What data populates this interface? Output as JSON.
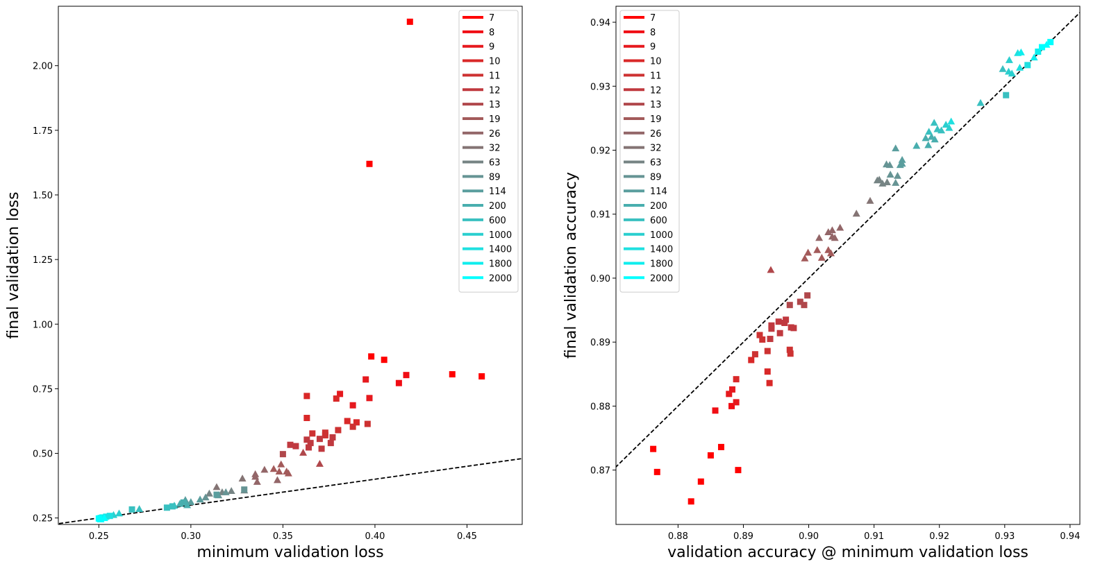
{
  "legend": {
    "labels": [
      "7",
      "8",
      "9",
      "10",
      "11",
      "12",
      "13",
      "19",
      "26",
      "32",
      "63",
      "89",
      "114",
      "200",
      "600",
      "1000",
      "1400",
      "1800",
      "2000"
    ],
    "colors": [
      "#ff0000",
      "#f00d14",
      "#e6191e",
      "#d92828",
      "#cd3232",
      "#c0393f",
      "#b0474b",
      "#a35a5a",
      "#936668",
      "#847474",
      "#768484",
      "#669494",
      "#5a9e9e",
      "#48aeae",
      "#39c0c0",
      "#2acfcf",
      "#1fe0e0",
      "#0eeeee",
      "#00ffff"
    ]
  },
  "chart_data": [
    {
      "type": "scatter",
      "title": "",
      "xlabel": "minimum validation loss",
      "ylabel": "final validation loss",
      "xlim": [
        0.228,
        0.48
      ],
      "ylim": [
        0.225,
        2.23
      ],
      "xticks": [
        "0.25",
        "0.30",
        "0.35",
        "0.40",
        "0.45"
      ],
      "yticks": [
        "0.25",
        "0.50",
        "0.75",
        "1.00",
        "1.25",
        "1.50",
        "1.75",
        "2.00"
      ],
      "reference_line": "y = x",
      "legend_position": "top-right",
      "points": [
        {
          "x": 0.419,
          "y": 2.17,
          "m": "s",
          "g": 0
        },
        {
          "x": 0.397,
          "y": 1.62,
          "m": "s",
          "g": 0
        },
        {
          "x": 0.398,
          "y": 0.875,
          "m": "s",
          "g": 0
        },
        {
          "x": 0.405,
          "y": 0.862,
          "m": "s",
          "g": 0
        },
        {
          "x": 0.442,
          "y": 0.806,
          "m": "s",
          "g": 0
        },
        {
          "x": 0.458,
          "y": 0.798,
          "m": "s",
          "g": 0
        },
        {
          "x": 0.417,
          "y": 0.803,
          "m": "s",
          "g": 1
        },
        {
          "x": 0.413,
          "y": 0.772,
          "m": "s",
          "g": 1
        },
        {
          "x": 0.395,
          "y": 0.786,
          "m": "s",
          "g": 2
        },
        {
          "x": 0.397,
          "y": 0.714,
          "m": "s",
          "g": 2
        },
        {
          "x": 0.388,
          "y": 0.686,
          "m": "s",
          "g": 2
        },
        {
          "x": 0.381,
          "y": 0.73,
          "m": "s",
          "g": 2
        },
        {
          "x": 0.379,
          "y": 0.712,
          "m": "s",
          "g": 3
        },
        {
          "x": 0.363,
          "y": 0.722,
          "m": "s",
          "g": 3
        },
        {
          "x": 0.363,
          "y": 0.637,
          "m": "s",
          "g": 3
        },
        {
          "x": 0.385,
          "y": 0.625,
          "m": "s",
          "g": 3
        },
        {
          "x": 0.39,
          "y": 0.62,
          "m": "s",
          "g": 3
        },
        {
          "x": 0.396,
          "y": 0.614,
          "m": "s",
          "g": 4
        },
        {
          "x": 0.388,
          "y": 0.603,
          "m": "s",
          "g": 4
        },
        {
          "x": 0.38,
          "y": 0.59,
          "m": "s",
          "g": 4
        },
        {
          "x": 0.373,
          "y": 0.58,
          "m": "s",
          "g": 4
        },
        {
          "x": 0.366,
          "y": 0.577,
          "m": "s",
          "g": 4
        },
        {
          "x": 0.373,
          "y": 0.57,
          "m": "s",
          "g": 4
        },
        {
          "x": 0.377,
          "y": 0.562,
          "m": "s",
          "g": 5
        },
        {
          "x": 0.37,
          "y": 0.556,
          "m": "s",
          "g": 5
        },
        {
          "x": 0.363,
          "y": 0.553,
          "m": "s",
          "g": 5
        },
        {
          "x": 0.365,
          "y": 0.54,
          "m": "s",
          "g": 5
        },
        {
          "x": 0.376,
          "y": 0.54,
          "m": "s",
          "g": 5
        },
        {
          "x": 0.354,
          "y": 0.533,
          "m": "s",
          "g": 5
        },
        {
          "x": 0.357,
          "y": 0.528,
          "m": "s",
          "g": 5
        },
        {
          "x": 0.371,
          "y": 0.518,
          "m": "s",
          "g": 5
        },
        {
          "x": 0.364,
          "y": 0.523,
          "m": "s",
          "g": 5
        },
        {
          "x": 0.35,
          "y": 0.497,
          "m": "s",
          "g": 6
        },
        {
          "x": 0.361,
          "y": 0.503,
          "m": "^",
          "g": 6
        },
        {
          "x": 0.37,
          "y": 0.46,
          "m": "^",
          "g": 6
        },
        {
          "x": 0.349,
          "y": 0.458,
          "m": "^",
          "g": 7
        },
        {
          "x": 0.345,
          "y": 0.44,
          "m": "^",
          "g": 7
        },
        {
          "x": 0.348,
          "y": 0.43,
          "m": "^",
          "g": 7
        },
        {
          "x": 0.352,
          "y": 0.43,
          "m": "^",
          "g": 7
        },
        {
          "x": 0.353,
          "y": 0.423,
          "m": "^",
          "g": 7
        },
        {
          "x": 0.34,
          "y": 0.437,
          "m": "^",
          "g": 8
        },
        {
          "x": 0.335,
          "y": 0.42,
          "m": "^",
          "g": 8
        },
        {
          "x": 0.335,
          "y": 0.41,
          "m": "^",
          "g": 8
        },
        {
          "x": 0.347,
          "y": 0.397,
          "m": "^",
          "g": 8
        },
        {
          "x": 0.336,
          "y": 0.39,
          "m": "^",
          "g": 8
        },
        {
          "x": 0.328,
          "y": 0.403,
          "m": "^",
          "g": 9
        },
        {
          "x": 0.314,
          "y": 0.37,
          "m": "^",
          "g": 9
        },
        {
          "x": 0.329,
          "y": 0.357,
          "m": "^",
          "g": 10
        },
        {
          "x": 0.317,
          "y": 0.35,
          "m": "^",
          "g": 10
        },
        {
          "x": 0.322,
          "y": 0.355,
          "m": "^",
          "g": 10
        },
        {
          "x": 0.31,
          "y": 0.345,
          "m": "^",
          "g": 10
        },
        {
          "x": 0.315,
          "y": 0.338,
          "m": "^",
          "g": 11
        },
        {
          "x": 0.308,
          "y": 0.33,
          "m": "^",
          "g": 11
        },
        {
          "x": 0.319,
          "y": 0.35,
          "m": "^",
          "g": 11
        },
        {
          "x": 0.305,
          "y": 0.322,
          "m": "^",
          "g": 12
        },
        {
          "x": 0.297,
          "y": 0.32,
          "m": "^",
          "g": 12
        },
        {
          "x": 0.3,
          "y": 0.312,
          "m": "^",
          "g": 12
        },
        {
          "x": 0.294,
          "y": 0.305,
          "m": "^",
          "g": 13
        },
        {
          "x": 0.298,
          "y": 0.3,
          "m": "^",
          "g": 13
        },
        {
          "x": 0.329,
          "y": 0.36,
          "m": "s",
          "g": 11
        },
        {
          "x": 0.314,
          "y": 0.34,
          "m": "s",
          "g": 12
        },
        {
          "x": 0.296,
          "y": 0.31,
          "m": "s",
          "g": 13
        },
        {
          "x": 0.29,
          "y": 0.295,
          "m": "s",
          "g": 14
        },
        {
          "x": 0.287,
          "y": 0.29,
          "m": "s",
          "g": 14
        },
        {
          "x": 0.268,
          "y": 0.283,
          "m": "s",
          "g": 14
        },
        {
          "x": 0.272,
          "y": 0.285,
          "m": "^",
          "g": 14
        },
        {
          "x": 0.291,
          "y": 0.298,
          "m": "^",
          "g": 14
        },
        {
          "x": 0.261,
          "y": 0.268,
          "m": "^",
          "g": 15
        },
        {
          "x": 0.258,
          "y": 0.262,
          "m": "^",
          "g": 15
        },
        {
          "x": 0.256,
          "y": 0.258,
          "m": "s",
          "g": 16
        },
        {
          "x": 0.254,
          "y": 0.255,
          "m": "s",
          "g": 16
        },
        {
          "x": 0.252,
          "y": 0.252,
          "m": "s",
          "g": 17
        },
        {
          "x": 0.251,
          "y": 0.25,
          "m": "s",
          "g": 17
        },
        {
          "x": 0.25,
          "y": 0.248,
          "m": "s",
          "g": 18
        },
        {
          "x": 0.251,
          "y": 0.245,
          "m": "^",
          "g": 18
        },
        {
          "x": 0.253,
          "y": 0.25,
          "m": "^",
          "g": 18
        }
      ]
    },
    {
      "type": "scatter",
      "title": "",
      "xlabel": "validation accuracy @ minimum validation loss",
      "ylabel": "final validation accuracy",
      "xlim": [
        0.8705,
        0.9415
      ],
      "ylim": [
        0.8615,
        0.9425
      ],
      "xticks": [
        "0.88",
        "0.89",
        "0.90",
        "0.91",
        "0.92",
        "0.93",
        "0.94"
      ],
      "yticks": [
        "0.87",
        "0.88",
        "0.89",
        "0.90",
        "0.91",
        "0.92",
        "0.93",
        "0.94"
      ],
      "reference_line": "y = x",
      "legend_position": "top-left",
      "points": [
        {
          "x": 0.8762,
          "y": 0.8733,
          "m": "s",
          "g": 0
        },
        {
          "x": 0.8768,
          "y": 0.8697,
          "m": "s",
          "g": 0
        },
        {
          "x": 0.882,
          "y": 0.8651,
          "m": "s",
          "g": 0
        },
        {
          "x": 0.8835,
          "y": 0.8682,
          "m": "s",
          "g": 0
        },
        {
          "x": 0.885,
          "y": 0.8723,
          "m": "s",
          "g": 0
        },
        {
          "x": 0.8866,
          "y": 0.8736,
          "m": "s",
          "g": 0
        },
        {
          "x": 0.8892,
          "y": 0.87,
          "m": "s",
          "g": 0
        },
        {
          "x": 0.8857,
          "y": 0.8793,
          "m": "s",
          "g": 1
        },
        {
          "x": 0.8882,
          "y": 0.88,
          "m": "s",
          "g": 1
        },
        {
          "x": 0.8889,
          "y": 0.8806,
          "m": "s",
          "g": 2
        },
        {
          "x": 0.8878,
          "y": 0.8819,
          "m": "s",
          "g": 2
        },
        {
          "x": 0.8883,
          "y": 0.8826,
          "m": "s",
          "g": 2
        },
        {
          "x": 0.8889,
          "y": 0.8842,
          "m": "s",
          "g": 3
        },
        {
          "x": 0.894,
          "y": 0.8836,
          "m": "s",
          "g": 3
        },
        {
          "x": 0.8937,
          "y": 0.8854,
          "m": "s",
          "g": 3
        },
        {
          "x": 0.8912,
          "y": 0.8872,
          "m": "s",
          "g": 3
        },
        {
          "x": 0.8918,
          "y": 0.8881,
          "m": "s",
          "g": 4
        },
        {
          "x": 0.8937,
          "y": 0.8886,
          "m": "s",
          "g": 4
        },
        {
          "x": 0.8972,
          "y": 0.8882,
          "m": "s",
          "g": 4
        },
        {
          "x": 0.8971,
          "y": 0.8888,
          "m": "s",
          "g": 4
        },
        {
          "x": 0.8925,
          "y": 0.8911,
          "m": "s",
          "g": 4
        },
        {
          "x": 0.8929,
          "y": 0.8904,
          "m": "s",
          "g": 4
        },
        {
          "x": 0.8941,
          "y": 0.8905,
          "m": "s",
          "g": 5
        },
        {
          "x": 0.8956,
          "y": 0.8914,
          "m": "s",
          "g": 5
        },
        {
          "x": 0.8943,
          "y": 0.8921,
          "m": "s",
          "g": 5
        },
        {
          "x": 0.8943,
          "y": 0.8926,
          "m": "s",
          "g": 5
        },
        {
          "x": 0.8954,
          "y": 0.8932,
          "m": "s",
          "g": 5
        },
        {
          "x": 0.8963,
          "y": 0.893,
          "m": "s",
          "g": 5
        },
        {
          "x": 0.8965,
          "y": 0.8935,
          "m": "s",
          "g": 5
        },
        {
          "x": 0.8973,
          "y": 0.8923,
          "m": "s",
          "g": 5
        },
        {
          "x": 0.8977,
          "y": 0.8922,
          "m": "s",
          "g": 5
        },
        {
          "x": 0.8971,
          "y": 0.8958,
          "m": "s",
          "g": 6
        },
        {
          "x": 0.8987,
          "y": 0.8963,
          "m": "s",
          "g": 6
        },
        {
          "x": 0.8993,
          "y": 0.8958,
          "m": "s",
          "g": 6
        },
        {
          "x": 0.8998,
          "y": 0.8973,
          "m": "s",
          "g": 6
        },
        {
          "x": 0.8942,
          "y": 0.9013,
          "m": "^",
          "g": 6
        },
        {
          "x": 0.8994,
          "y": 0.9031,
          "m": "^",
          "g": 7
        },
        {
          "x": 0.8999,
          "y": 0.904,
          "m": "^",
          "g": 7
        },
        {
          "x": 0.9013,
          "y": 0.9044,
          "m": "^",
          "g": 7
        },
        {
          "x": 0.902,
          "y": 0.9032,
          "m": "^",
          "g": 7
        },
        {
          "x": 0.903,
          "y": 0.9044,
          "m": "^",
          "g": 7
        },
        {
          "x": 0.9034,
          "y": 0.9039,
          "m": "^",
          "g": 7
        },
        {
          "x": 0.9016,
          "y": 0.9063,
          "m": "^",
          "g": 8
        },
        {
          "x": 0.9036,
          "y": 0.9065,
          "m": "^",
          "g": 8
        },
        {
          "x": 0.904,
          "y": 0.9063,
          "m": "^",
          "g": 8
        },
        {
          "x": 0.903,
          "y": 0.9072,
          "m": "^",
          "g": 8
        },
        {
          "x": 0.9036,
          "y": 0.9075,
          "m": "^",
          "g": 8
        },
        {
          "x": 0.9048,
          "y": 0.9079,
          "m": "^",
          "g": 8
        },
        {
          "x": 0.9073,
          "y": 0.9101,
          "m": "^",
          "g": 9
        },
        {
          "x": 0.9094,
          "y": 0.9121,
          "m": "^",
          "g": 9
        },
        {
          "x": 0.9105,
          "y": 0.9153,
          "m": "^",
          "g": 10
        },
        {
          "x": 0.9108,
          "y": 0.9154,
          "m": "^",
          "g": 10
        },
        {
          "x": 0.9113,
          "y": 0.9148,
          "m": "^",
          "g": 10
        },
        {
          "x": 0.912,
          "y": 0.915,
          "m": "^",
          "g": 10
        },
        {
          "x": 0.9125,
          "y": 0.9162,
          "m": "^",
          "g": 11
        },
        {
          "x": 0.9133,
          "y": 0.9149,
          "m": "^",
          "g": 11
        },
        {
          "x": 0.9136,
          "y": 0.916,
          "m": "^",
          "g": 11
        },
        {
          "x": 0.9119,
          "y": 0.9178,
          "m": "^",
          "g": 11
        },
        {
          "x": 0.9124,
          "y": 0.9177,
          "m": "^",
          "g": 11
        },
        {
          "x": 0.914,
          "y": 0.9177,
          "m": "^",
          "g": 12
        },
        {
          "x": 0.9143,
          "y": 0.9179,
          "m": "^",
          "g": 12
        },
        {
          "x": 0.9143,
          "y": 0.9185,
          "m": "^",
          "g": 12
        },
        {
          "x": 0.9133,
          "y": 0.9203,
          "m": "^",
          "g": 12
        },
        {
          "x": 0.9165,
          "y": 0.9207,
          "m": "^",
          "g": 13
        },
        {
          "x": 0.9179,
          "y": 0.9219,
          "m": "^",
          "g": 13
        },
        {
          "x": 0.9183,
          "y": 0.9208,
          "m": "^",
          "g": 13
        },
        {
          "x": 0.9188,
          "y": 0.9221,
          "m": "^",
          "g": 13
        },
        {
          "x": 0.9193,
          "y": 0.9217,
          "m": "^",
          "g": 13
        },
        {
          "x": 0.9184,
          "y": 0.9229,
          "m": "^",
          "g": 14
        },
        {
          "x": 0.9192,
          "y": 0.9243,
          "m": "^",
          "g": 14
        },
        {
          "x": 0.9197,
          "y": 0.9233,
          "m": "^",
          "g": 14
        },
        {
          "x": 0.9203,
          "y": 0.9231,
          "m": "^",
          "g": 14
        },
        {
          "x": 0.921,
          "y": 0.924,
          "m": "^",
          "g": 15
        },
        {
          "x": 0.9215,
          "y": 0.9235,
          "m": "^",
          "g": 15
        },
        {
          "x": 0.9218,
          "y": 0.9245,
          "m": "^",
          "g": 16
        },
        {
          "x": 0.9263,
          "y": 0.9274,
          "m": "^",
          "g": 14
        },
        {
          "x": 0.9302,
          "y": 0.9286,
          "m": "s",
          "g": 14
        },
        {
          "x": 0.9297,
          "y": 0.9327,
          "m": "^",
          "g": 14
        },
        {
          "x": 0.9306,
          "y": 0.9323,
          "m": "^",
          "g": 15
        },
        {
          "x": 0.9311,
          "y": 0.932,
          "m": "^",
          "g": 15
        },
        {
          "x": 0.9307,
          "y": 0.9341,
          "m": "^",
          "g": 15
        },
        {
          "x": 0.932,
          "y": 0.9352,
          "m": "^",
          "g": 16
        },
        {
          "x": 0.9325,
          "y": 0.9353,
          "m": "^",
          "g": 17
        },
        {
          "x": 0.9323,
          "y": 0.9329,
          "m": "^",
          "g": 16
        },
        {
          "x": 0.9335,
          "y": 0.9333,
          "m": "s",
          "g": 16
        },
        {
          "x": 0.9345,
          "y": 0.9345,
          "m": "^",
          "g": 17
        },
        {
          "x": 0.9351,
          "y": 0.9354,
          "m": "s",
          "g": 17
        },
        {
          "x": 0.9357,
          "y": 0.9361,
          "m": "s",
          "g": 18
        },
        {
          "x": 0.9364,
          "y": 0.9365,
          "m": "^",
          "g": 18
        },
        {
          "x": 0.937,
          "y": 0.9369,
          "m": "s",
          "g": 18
        }
      ]
    }
  ]
}
